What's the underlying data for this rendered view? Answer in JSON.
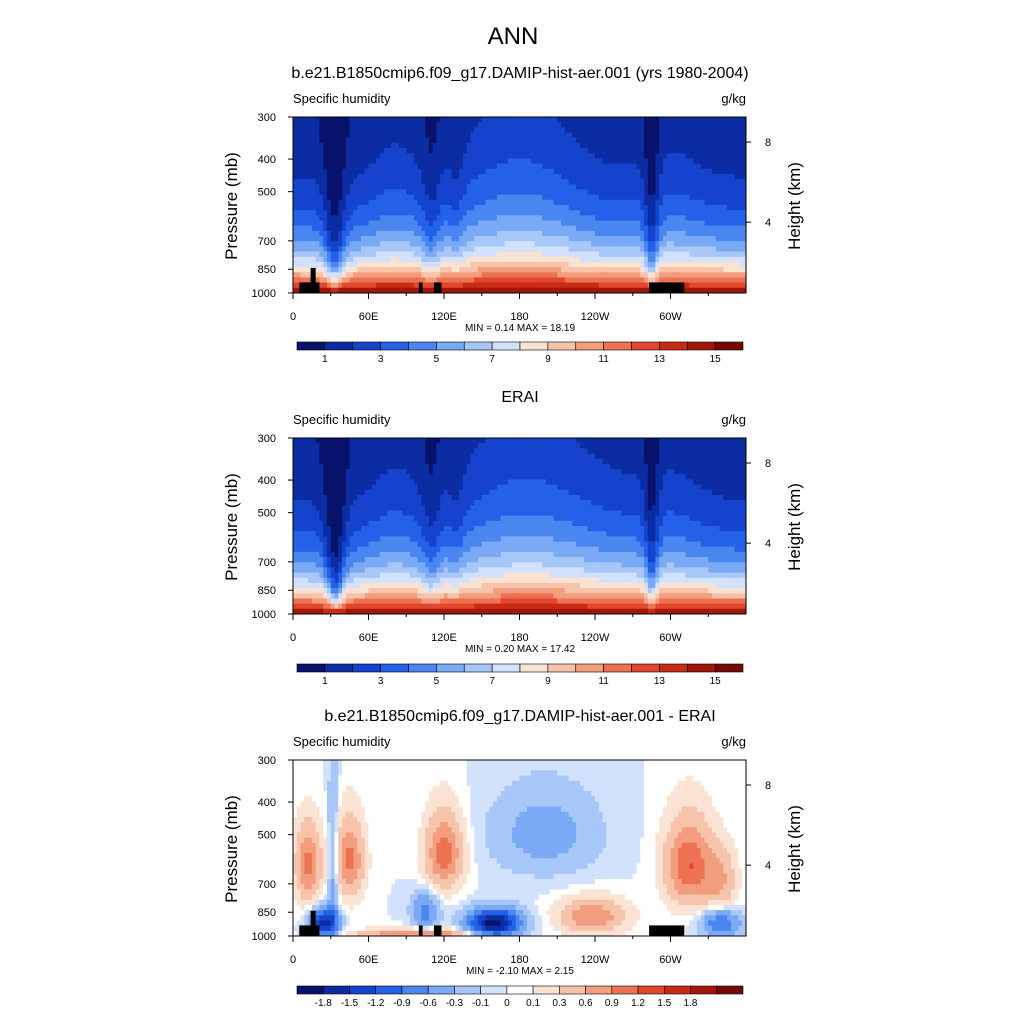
{
  "figure": {
    "title": "ANN",
    "colors": {
      "absolute_scale": [
        "#08126b",
        "#0c2ca3",
        "#1443cc",
        "#2461e8",
        "#4a86f0",
        "#7aa9f5",
        "#a7c7f9",
        "#d2e2fc",
        "#fbe3d3",
        "#f7c3ab",
        "#f29d7e",
        "#ec7252",
        "#e0472d",
        "#c82a16",
        "#a2160b",
        "#750a05"
      ],
      "difference_scale": [
        "#08126b",
        "#0c2ca3",
        "#1443cc",
        "#2461e8",
        "#4a86f0",
        "#7aa9f5",
        "#a7c7f9",
        "#d2e2fc",
        "#ffffff",
        "#fbe3d3",
        "#f7c3ab",
        "#f29d7e",
        "#ec7252",
        "#e0472d",
        "#c82a16",
        "#a2160b",
        "#750a05"
      ],
      "topography": "#000000"
    }
  },
  "chart_data": [
    {
      "type": "heatmap",
      "panel": "model",
      "title": "b.e21.B1850cmip6.f09_g17.DAMIP-hist-aer.001 (yrs 1980-2004)",
      "left_label": "Specific humidity",
      "right_label": "g/kg",
      "xlabel": "",
      "ylabel": "Pressure (mb)",
      "ylabel_right": "Height (km)",
      "x_ticks": [
        "0",
        "60E",
        "120E",
        "180",
        "120W",
        "60W"
      ],
      "x_range": [
        0,
        360
      ],
      "y_ticks": [
        "300",
        "400",
        "500",
        "700",
        "850",
        "1000"
      ],
      "y_range_mb": [
        300,
        1000
      ],
      "y_scale": "log",
      "right_ticks": [
        "8",
        "4"
      ],
      "stats": "MIN =   0.14  MAX =  18.19",
      "colorbar_labels": [
        "1",
        "3",
        "5",
        "7",
        "9",
        "11",
        "13",
        "15"
      ],
      "colorbar_levels": [
        0,
        1,
        2,
        3,
        4,
        5,
        6,
        7,
        8,
        9,
        10,
        11,
        12,
        13,
        14,
        15
      ],
      "surface_humidity_gkg": 15.5,
      "masked_topography": true
    },
    {
      "type": "heatmap",
      "panel": "obs",
      "title": "ERAI",
      "left_label": "Specific humidity",
      "right_label": "g/kg",
      "xlabel": "",
      "ylabel": "Pressure (mb)",
      "ylabel_right": "Height (km)",
      "x_ticks": [
        "0",
        "60E",
        "120E",
        "180",
        "120W",
        "60W"
      ],
      "x_range": [
        0,
        360
      ],
      "y_ticks": [
        "300",
        "400",
        "500",
        "700",
        "850",
        "1000"
      ],
      "y_range_mb": [
        300,
        1000
      ],
      "y_scale": "log",
      "right_ticks": [
        "8",
        "4"
      ],
      "stats": "MIN =   0.20  MAX =  17.42",
      "colorbar_labels": [
        "1",
        "3",
        "5",
        "7",
        "9",
        "11",
        "13",
        "15"
      ],
      "colorbar_levels": [
        0,
        1,
        2,
        3,
        4,
        5,
        6,
        7,
        8,
        9,
        10,
        11,
        12,
        13,
        14,
        15
      ],
      "surface_humidity_gkg": 15.2,
      "masked_topography": false
    },
    {
      "type": "heatmap",
      "panel": "difference",
      "title": "b.e21.B1850cmip6.f09_g17.DAMIP-hist-aer.001 - ERAI",
      "left_label": "Specific humidity",
      "right_label": "g/kg",
      "xlabel": "",
      "ylabel": "Pressure (mb)",
      "ylabel_right": "Height (km)",
      "x_ticks": [
        "0",
        "60E",
        "120E",
        "180",
        "120W",
        "60W"
      ],
      "x_range": [
        0,
        360
      ],
      "y_ticks": [
        "300",
        "400",
        "500",
        "700",
        "850",
        "1000"
      ],
      "y_range_mb": [
        300,
        1000
      ],
      "y_scale": "log",
      "right_ticks": [
        "8",
        "4"
      ],
      "stats": "MIN =  -2.10  MAX =   2.15",
      "colorbar_labels": [
        "-1.8",
        "-1.5",
        "-1.2",
        "-0.9",
        "-0.6",
        "-0.3",
        "-0.1",
        "0",
        "0.1",
        "0.3",
        "0.6",
        "0.9",
        "1.2",
        "1.5",
        "1.8"
      ],
      "colorbar_levels": [
        -1.8,
        -1.5,
        -1.2,
        -0.9,
        -0.6,
        -0.3,
        -0.1,
        0,
        0.1,
        0.3,
        0.6,
        0.9,
        1.2,
        1.5,
        1.8
      ],
      "masked_topography": true
    }
  ]
}
